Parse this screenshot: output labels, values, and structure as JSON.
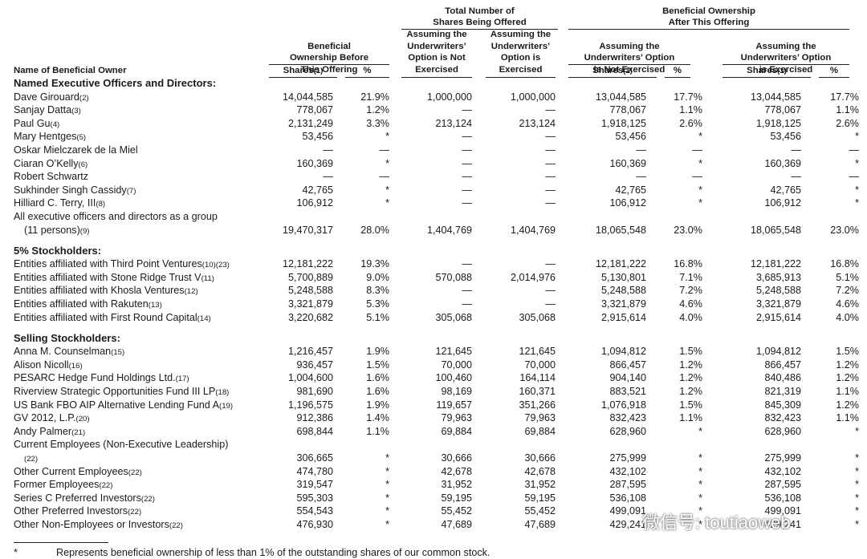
{
  "header": {
    "groups": [
      [
        "Total Number of",
        "Shares Being Offered"
      ],
      [
        "Beneficial Ownership",
        "After This Offering"
      ]
    ],
    "subheaders": [
      [
        "Beneficial",
        "Ownership Before",
        "This Offering"
      ],
      [
        "Assuming the",
        "Underwriters’",
        "Option is Not",
        "Exercised"
      ],
      [
        "Assuming the",
        "Underwriters’",
        "Option is",
        "Exercised"
      ],
      [
        "Assuming the",
        "Underwriters’ Option",
        "is Not Exercised"
      ],
      [
        "Assuming the",
        "Underwriters’ Option",
        "is Exercised"
      ]
    ],
    "name_label": "Name of Beneficial Owner",
    "column_labels": [
      {
        "text": "Shares",
        "note": "(1)"
      },
      {
        "text": "%"
      },
      {
        "text": "Shares",
        "note": "(1)"
      },
      {
        "text": "%"
      },
      {
        "text": "Shares",
        "note": "(1)"
      },
      {
        "text": "%"
      }
    ]
  },
  "rows": [
    {
      "section": "Named Executive Officers and Directors:"
    },
    {
      "name": "Dave Girouard",
      "note": "(2)",
      "cells": [
        "14,044,585",
        "21.9%",
        "1,000,000",
        "1,000,000",
        "13,044,585",
        "17.7%",
        "13,044,585",
        "17.7%"
      ]
    },
    {
      "name": "Sanjay Datta",
      "note": "(3)",
      "cells": [
        "778,067",
        "1.2%",
        "—",
        "—",
        "778,067",
        "1.1%",
        "778,067",
        "1.1%"
      ]
    },
    {
      "name": "Paul Gu",
      "note": "(4)",
      "cells": [
        "2,131,249",
        "3.3%",
        "213,124",
        "213,124",
        "1,918,125",
        "2.6%",
        "1,918,125",
        "2.6%"
      ]
    },
    {
      "name": "Mary Hentges",
      "note": "(5)",
      "cells": [
        "53,456",
        "*",
        "—",
        "—",
        "53,456",
        "*",
        "53,456",
        "*"
      ]
    },
    {
      "name": "Oskar Mielczarek de la Miel",
      "cells": [
        "—",
        "—",
        "—",
        "—",
        "—",
        "—",
        "—",
        "—"
      ]
    },
    {
      "name": "Ciaran O’Kelly",
      "note": "(6)",
      "cells": [
        "160,369",
        "*",
        "—",
        "—",
        "160,369",
        "*",
        "160,369",
        "*"
      ]
    },
    {
      "name": "Robert Schwartz",
      "cells": [
        "—",
        "—",
        "—",
        "—",
        "—",
        "—",
        "—",
        "—"
      ]
    },
    {
      "name": "Sukhinder Singh Cassidy",
      "note": "(7)",
      "cells": [
        "42,765",
        "*",
        "—",
        "—",
        "42,765",
        "*",
        "42,765",
        "*"
      ]
    },
    {
      "name": "Hilliard C. Terry, III",
      "note": "(8)",
      "cells": [
        "106,912",
        "*",
        "—",
        "—",
        "106,912",
        "*",
        "106,912",
        "*"
      ]
    },
    {
      "name": "All executive officers and directors as a group",
      "name2": "(11 persons)",
      "note": "(9)",
      "cells": [
        "19,470,317",
        "28.0%",
        "1,404,769",
        "1,404,769",
        "18,065,548",
        "23.0%",
        "18,065,548",
        "23.0%"
      ]
    },
    {
      "section": "5% Stockholders:"
    },
    {
      "name": "Entities affiliated with Third Point Ventures",
      "note": "(10)(23)",
      "cells": [
        "12,181,222",
        "19.3%",
        "—",
        "—",
        "12,181,222",
        "16.8%",
        "12,181,222",
        "16.8%"
      ]
    },
    {
      "name": "Entities affiliated with Stone Ridge Trust V",
      "note": "(11)",
      "cells": [
        "5,700,889",
        "9.0%",
        "570,088",
        "2,014,976",
        "5,130,801",
        "7.1%",
        "3,685,913",
        "5.1%"
      ]
    },
    {
      "name": "Entities affiliated with Khosla Ventures",
      "note": "(12)",
      "cells": [
        "5,248,588",
        "8.3%",
        "—",
        "—",
        "5,248,588",
        "7.2%",
        "5,248,588",
        "7.2%"
      ]
    },
    {
      "name": "Entities affiliated with Rakuten",
      "note": "(13)",
      "cells": [
        "3,321,879",
        "5.3%",
        "—",
        "—",
        "3,321,879",
        "4.6%",
        "3,321,879",
        "4.6%"
      ]
    },
    {
      "name": "Entities affiliated with First Round Capital",
      "note": "(14)",
      "cells": [
        "3,220,682",
        "5.1%",
        "305,068",
        "305,068",
        "2,915,614",
        "4.0%",
        "2,915,614",
        "4.0%"
      ]
    },
    {
      "section": "Selling Stockholders:"
    },
    {
      "name": "Anna M. Counselman",
      "note": "(15)",
      "cells": [
        "1,216,457",
        "1.9%",
        "121,645",
        "121,645",
        "1,094,812",
        "1.5%",
        "1,094,812",
        "1.5%"
      ]
    },
    {
      "name": "Alison Nicoll",
      "note": "(16)",
      "cells": [
        "936,457",
        "1.5%",
        "70,000",
        "70,000",
        "866,457",
        "1.2%",
        "866,457",
        "1.2%"
      ]
    },
    {
      "name": "PESARC Hedge Fund Holdings Ltd.",
      "note": "(17)",
      "cells": [
        "1,004,600",
        "1.6%",
        "100,460",
        "164,114",
        "904,140",
        "1.2%",
        "840,486",
        "1.2%"
      ]
    },
    {
      "name": "Riverview Strategic Opportunities Fund III LP",
      "note": "(18)",
      "cells": [
        "981,690",
        "1.6%",
        "98,169",
        "160,371",
        "883,521",
        "1.2%",
        "821,319",
        "1.1%"
      ]
    },
    {
      "name": "US Bank FBO AIP Alternative Lending Fund A",
      "note": "(19)",
      "cells": [
        "1,196,575",
        "1.9%",
        "119,657",
        "351,266",
        "1,076,918",
        "1.5%",
        "845,309",
        "1.2%"
      ]
    },
    {
      "name": "GV 2012, L.P.",
      "note": "(20)",
      "cells": [
        "912,386",
        "1.4%",
        "79,963",
        "79,963",
        "832,423",
        "1.1%",
        "832,423",
        "1.1%"
      ]
    },
    {
      "name": "Andy Palmer",
      "note": "(21)",
      "cells": [
        "698,844",
        "1.1%",
        "69,884",
        "69,884",
        "628,960",
        "*",
        "628,960",
        "*"
      ]
    },
    {
      "name": "Current Employees (Non-Executive Leadership)",
      "name2": "",
      "note": "(22)",
      "cells": [
        "306,665",
        "*",
        "30,666",
        "30,666",
        "275,999",
        "*",
        "275,999",
        "*"
      ]
    },
    {
      "name": "Other Current Employees",
      "note": "(22)",
      "cells": [
        "474,780",
        "*",
        "42,678",
        "42,678",
        "432,102",
        "*",
        "432,102",
        "*"
      ]
    },
    {
      "name": "Former Employees",
      "note": "(22)",
      "cells": [
        "319,547",
        "*",
        "31,952",
        "31,952",
        "287,595",
        "*",
        "287,595",
        "*"
      ]
    },
    {
      "name": "Series C Preferred Investors",
      "note": "(22)",
      "cells": [
        "595,303",
        "*",
        "59,195",
        "59,195",
        "536,108",
        "*",
        "536,108",
        "*"
      ]
    },
    {
      "name": "Other Preferred Investors",
      "note": "(22)",
      "cells": [
        "554,543",
        "*",
        "55,452",
        "55,452",
        "499,091",
        "*",
        "499,091",
        "*"
      ]
    },
    {
      "name": "Other Non-Employees or Investors",
      "note": "(22)",
      "cells": [
        "476,930",
        "*",
        "47,689",
        "47,689",
        "429,241",
        "*",
        "429,241",
        "*"
      ]
    }
  ],
  "footnote": {
    "mark": "*",
    "text": "Represents beneficial ownership of less than 1% of the outstanding shares of our common stock."
  },
  "watermark": "微信号: toutiaoweb"
}
